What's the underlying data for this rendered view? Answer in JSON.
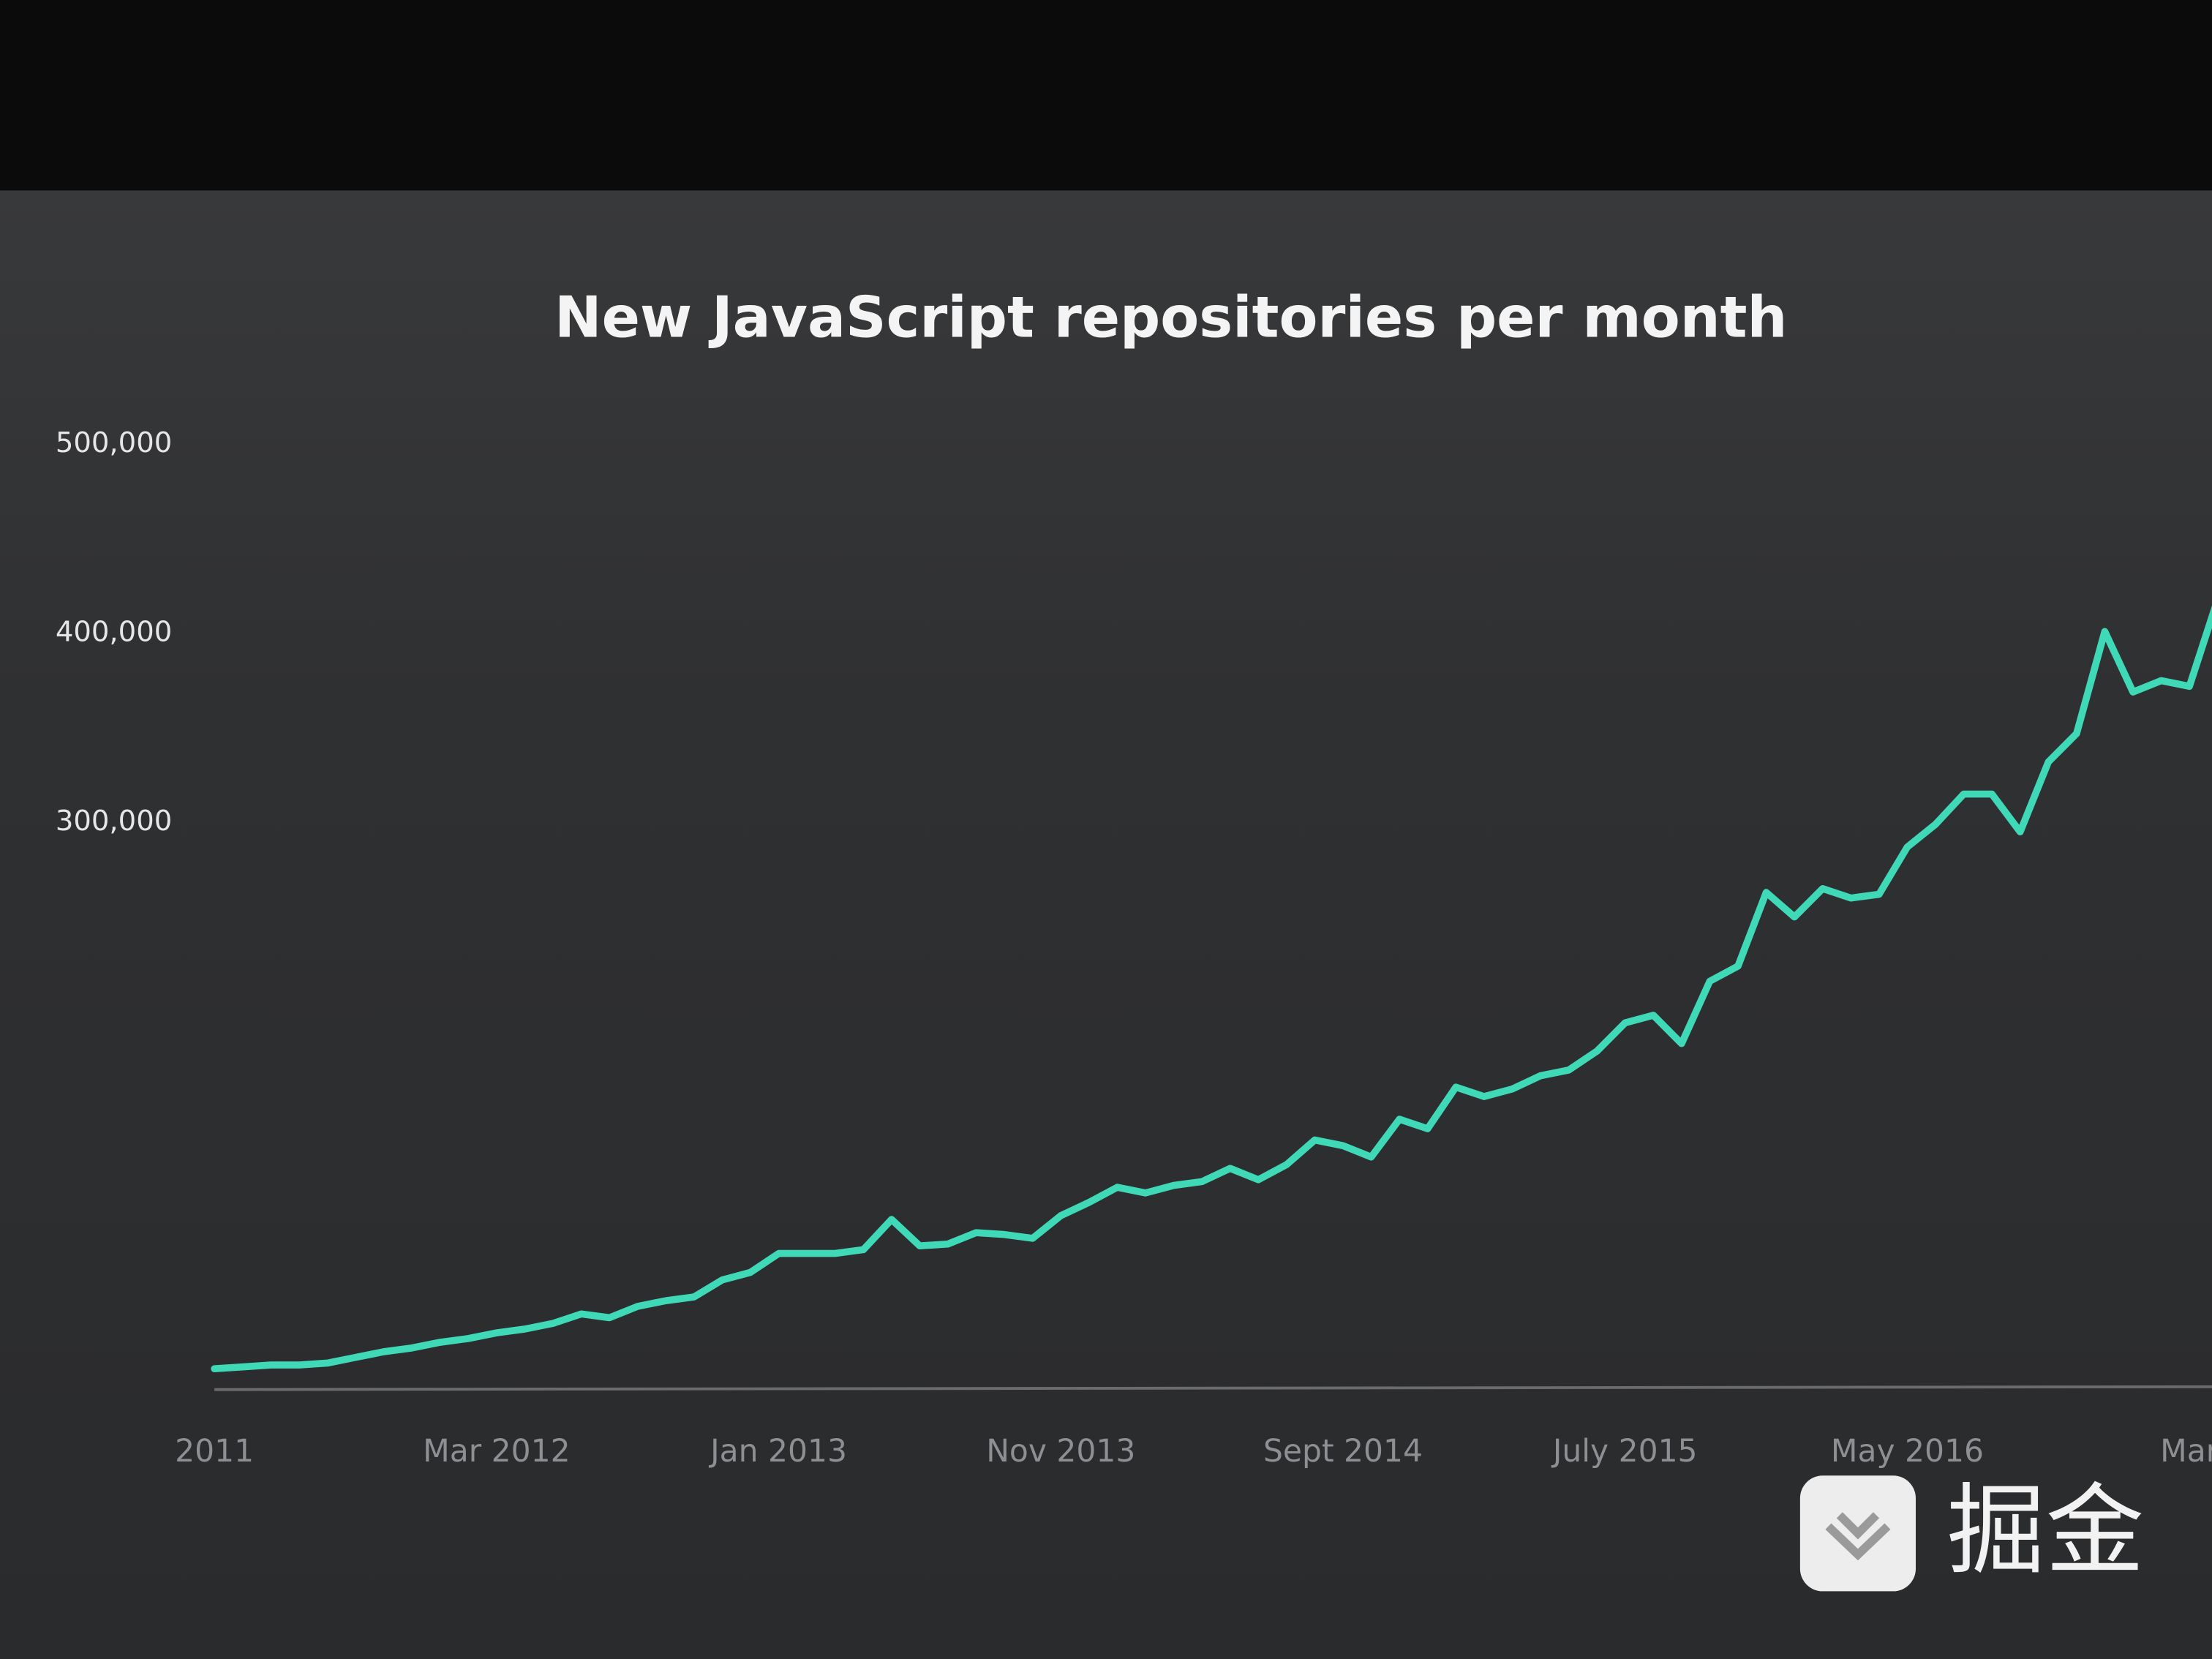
{
  "chart_data": {
    "type": "line",
    "title": "New JavaScript repositories per month",
    "categories": [
      "2011",
      null,
      null,
      null,
      null,
      null,
      null,
      null,
      null,
      null,
      "Mar 2012",
      null,
      null,
      null,
      null,
      null,
      null,
      null,
      null,
      null,
      "Jan 2013",
      null,
      null,
      null,
      null,
      null,
      null,
      null,
      null,
      null,
      "Nov 2013",
      null,
      null,
      null,
      null,
      null,
      null,
      null,
      null,
      null,
      "Sept 2014",
      null,
      null,
      null,
      null,
      null,
      null,
      null,
      null,
      null,
      "July 2015",
      null,
      null,
      null,
      null,
      null,
      null,
      null,
      null,
      null,
      "May 2016",
      null,
      null,
      null,
      null,
      null,
      null,
      null,
      null,
      null,
      "Mar",
      null
    ],
    "values": [
      11000,
      12000,
      13000,
      13000,
      14000,
      17000,
      20000,
      22000,
      25000,
      27000,
      30000,
      32000,
      35000,
      40000,
      38000,
      44000,
      47000,
      49000,
      58000,
      62000,
      72000,
      72000,
      72000,
      74000,
      90000,
      76000,
      77000,
      83000,
      82000,
      80000,
      92000,
      99000,
      107000,
      104000,
      108000,
      110000,
      117000,
      111000,
      119000,
      132000,
      129000,
      123000,
      143000,
      138000,
      160000,
      155000,
      159000,
      166000,
      169000,
      179000,
      194000,
      198000,
      183000,
      216000,
      224000,
      263000,
      250000,
      265000,
      260000,
      262000,
      287000,
      299000,
      315000,
      315000,
      295000,
      332000,
      347000,
      401000,
      369000,
      375000,
      372000,
      418000
    ],
    "color": "#3fd9b8",
    "ylim": [
      0,
      500000
    ],
    "yticks": [
      {
        "value": 300000,
        "label": "300,000"
      },
      {
        "value": 400000,
        "label": "400,000"
      },
      {
        "value": 500000,
        "label": "500,000"
      }
    ],
    "grid": false
  },
  "watermark": "掘金"
}
